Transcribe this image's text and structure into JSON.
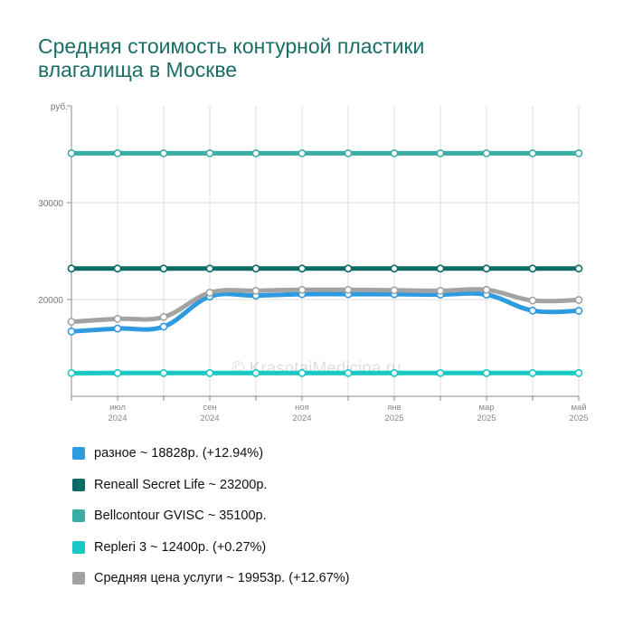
{
  "title": {
    "line1": "Средняя стоимость контурной пластики",
    "line2": "влагалища в Москве"
  },
  "watermark": "© KrasotaiMedicina.ru",
  "chart_data": {
    "type": "line",
    "ylabel": "руб.",
    "ylim": [
      10000,
      40000
    ],
    "y_ticks": [
      {
        "value": 20000,
        "label": "20000"
      },
      {
        "value": 30000,
        "label": "30000"
      }
    ],
    "x_tick_labels": [
      {
        "month": "июл",
        "year": "2024"
      },
      {
        "month": "сен",
        "year": "2024"
      },
      {
        "month": "ноя",
        "year": "2024"
      },
      {
        "month": "янв",
        "year": "2025"
      },
      {
        "month": "мар",
        "year": "2025"
      },
      {
        "month": "май",
        "year": "2025"
      }
    ],
    "x": [
      "2024-06",
      "2024-07",
      "2024-08",
      "2024-09",
      "2024-10",
      "2024-11",
      "2024-12",
      "2025-01",
      "2025-02",
      "2025-03",
      "2025-04",
      "2025-05"
    ],
    "grid": true,
    "legend_position": "bottom",
    "series": [
      {
        "name": "разное",
        "legend_label": "разное ~ 18828р. (+12.94%)",
        "color": "#2e9be0",
        "values": [
          16700,
          17000,
          17200,
          20300,
          20400,
          20550,
          20550,
          20550,
          20500,
          20500,
          18850,
          18828
        ]
      },
      {
        "name": "Reneall Secret Life",
        "legend_label": "Reneall Secret Life ~ 23200р.",
        "color": "#0c6b66",
        "values": [
          23200,
          23200,
          23200,
          23200,
          23200,
          23200,
          23200,
          23200,
          23200,
          23200,
          23200,
          23200
        ]
      },
      {
        "name": "Bellcontour GVISC",
        "legend_label": "Bellcontour GVISC ~ 35100р.",
        "color": "#3aaea4",
        "values": [
          35100,
          35100,
          35100,
          35100,
          35100,
          35100,
          35100,
          35100,
          35100,
          35100,
          35100,
          35100
        ]
      },
      {
        "name": "Repleri 3",
        "legend_label": "Repleri 3 ~ 12400р. (+0.27%)",
        "color": "#18c8c4",
        "values": [
          12400,
          12400,
          12400,
          12400,
          12400,
          12400,
          12400,
          12400,
          12400,
          12400,
          12400,
          12400
        ]
      },
      {
        "name": "Средняя цена услуги",
        "legend_label": "Средняя цена услуги ~ 19953р. (+12.67%)",
        "color": "#a3a3a3",
        "values": [
          17700,
          18000,
          18200,
          20700,
          20900,
          21000,
          21000,
          20950,
          20900,
          21000,
          19900,
          19953
        ]
      }
    ]
  }
}
